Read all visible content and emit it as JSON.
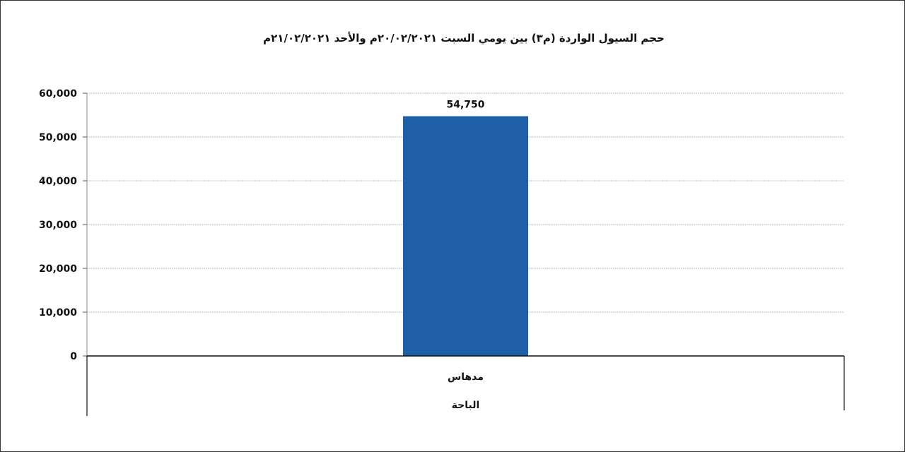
{
  "chart_data": {
    "type": "bar",
    "title": "حجم السيول الواردة (م٣) بين يومي السبت ٢٠/٠٢/٢٠٢١م والأحد ٢١/٠٢/٢٠٢١م",
    "categories": [
      "مدهاس"
    ],
    "group_label": "الباحة",
    "values": [
      54750
    ],
    "data_labels": [
      "54,750"
    ],
    "y_ticks": [
      "0",
      "10,000",
      "20,000",
      "30,000",
      "40,000",
      "50,000",
      "60,000"
    ],
    "y_tick_values": [
      0,
      10000,
      20000,
      30000,
      40000,
      50000,
      60000
    ],
    "ylim": [
      0,
      60000
    ],
    "grid": true,
    "bar_color": "#1f5fa8",
    "grid_color": "#bdbdbd"
  }
}
